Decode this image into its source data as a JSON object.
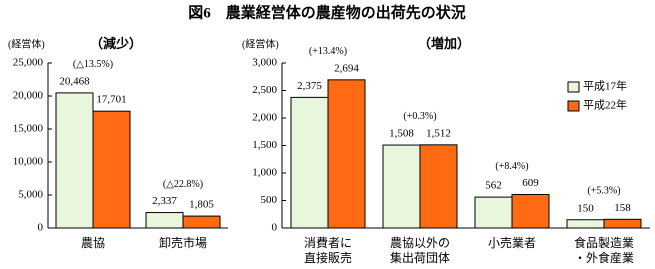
{
  "title": "図6　農業経営体の農産物の出荷先の状況",
  "chart_data": [
    {
      "type": "bar",
      "y_label": "(経営体)",
      "subtitle": "（減少）",
      "categories": [
        "農協",
        "卸売市場"
      ],
      "annotations": [
        "(△13.5%)",
        "(△22.8%)"
      ],
      "series": [
        {
          "color": "#e8f6dc",
          "values": [
            20468,
            2337
          ],
          "value_labels": [
            "20,468",
            "2,337"
          ]
        },
        {
          "color": "#ff6a13",
          "values": [
            17701,
            1805
          ],
          "value_labels": [
            "17,701",
            "1,805"
          ]
        }
      ],
      "ylim": [
        0,
        25000
      ],
      "yticks": [
        0,
        {
          "value": 5000,
          "label": "5,000"
        },
        {
          "value": 10000,
          "label": "10,000"
        },
        {
          "value": 15000,
          "label": "15,000"
        },
        {
          "value": 20000,
          "label": "20,000"
        },
        {
          "value": 25000,
          "label": "25,000"
        }
      ]
    },
    {
      "type": "bar",
      "y_label": "(経営体)",
      "subtitle": "（増加）",
      "categories": [
        "消費者に\n直接販売",
        "農協以外の\n集出荷団体",
        "小売業者",
        "食品製造業\n・外食産業"
      ],
      "annotations": [
        "(+13.4%)",
        "(+0.3%)",
        "(+8.4%)",
        "(+5.3%)"
      ],
      "series": [
        {
          "name": "平成17年",
          "color": "#e8f6dc",
          "values": [
            2375,
            1508,
            562,
            150
          ],
          "value_labels": [
            "2,375",
            "1,508",
            "562",
            "150"
          ]
        },
        {
          "name": "平成22年",
          "color": "#ff6a13",
          "values": [
            2694,
            1512,
            609,
            158
          ],
          "value_labels": [
            "2,694",
            "1,512",
            "609",
            "158"
          ]
        }
      ],
      "ylim": [
        0,
        3000
      ],
      "yticks": [
        0,
        500,
        {
          "value": 1000,
          "label": "1,000"
        },
        {
          "value": 1500,
          "label": "1,500"
        },
        {
          "value": 2000,
          "label": "2,000"
        },
        {
          "value": 2500,
          "label": "2,500"
        },
        {
          "value": 3000,
          "label": "3,000"
        }
      ],
      "legend": "upper right"
    }
  ]
}
